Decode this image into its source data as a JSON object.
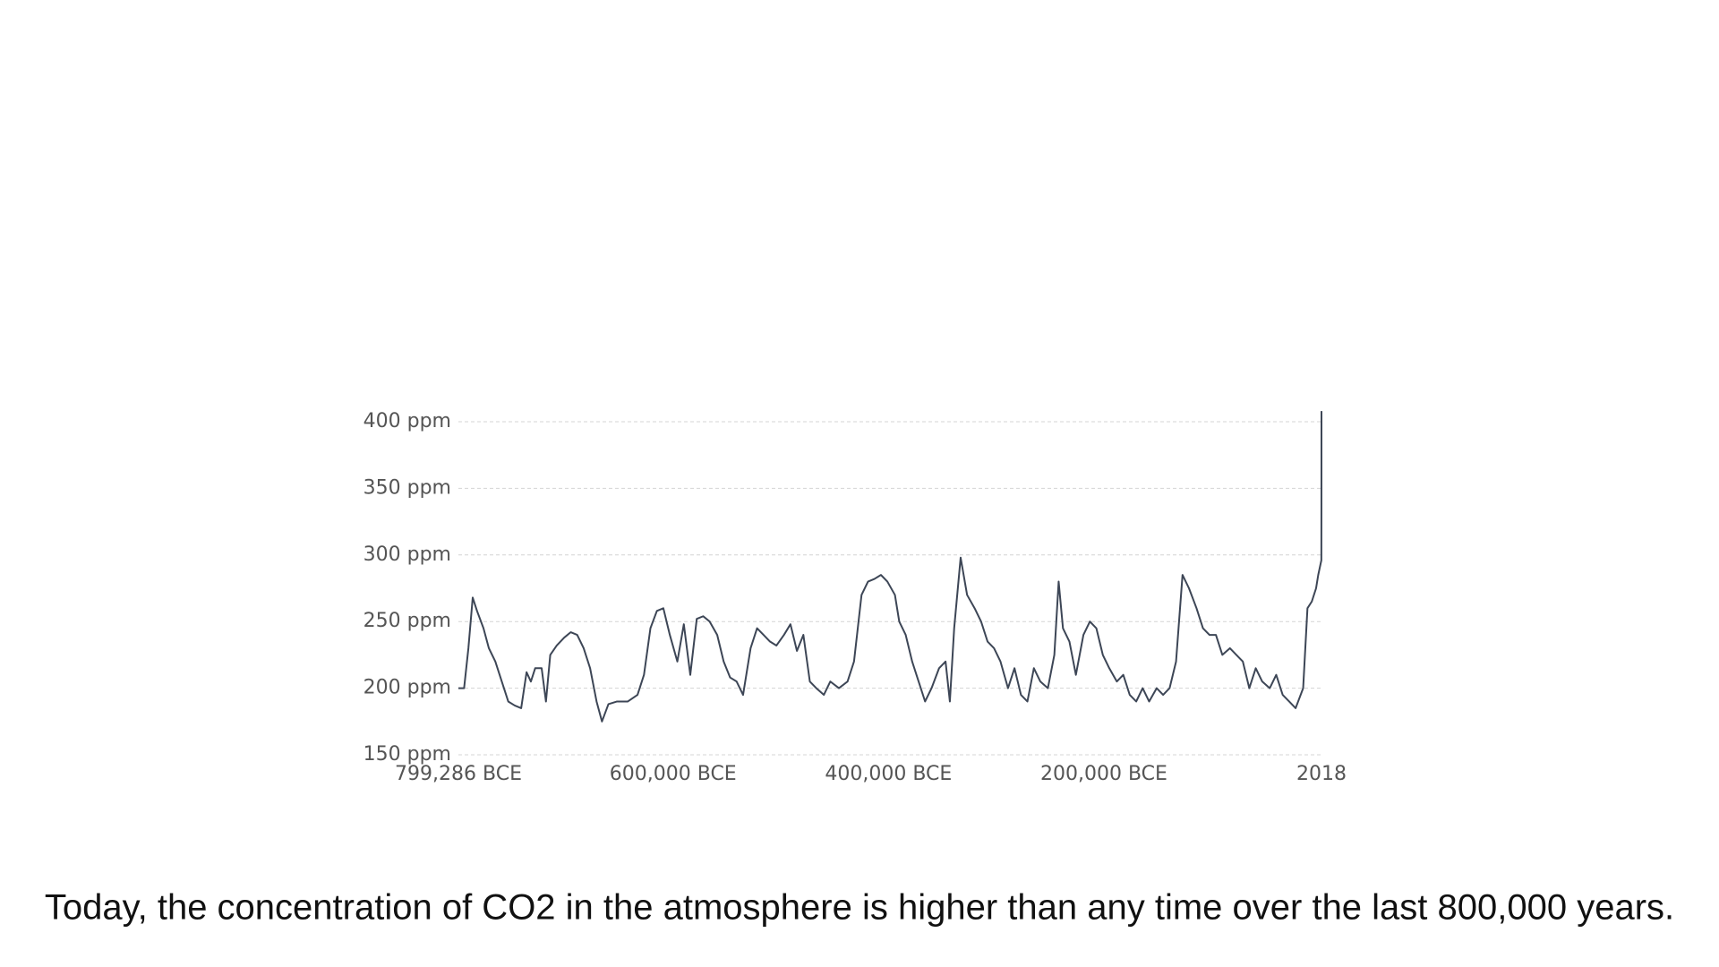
{
  "chart_data": {
    "type": "line",
    "color": "#3d4656",
    "grid": true,
    "x": [
      -799286,
      -794000,
      -790000,
      -786000,
      -782000,
      -776000,
      -771000,
      -765000,
      -759000,
      -753000,
      -747000,
      -741000,
      -736000,
      -732000,
      -728000,
      -722000,
      -718000,
      -714000,
      -708000,
      -701000,
      -695000,
      -689000,
      -683000,
      -677000,
      -671000,
      -666000,
      -660000,
      -652000,
      -642000,
      -633000,
      -627000,
      -621000,
      -615000,
      -609000,
      -603000,
      -596000,
      -590000,
      -584000,
      -578000,
      -572000,
      -566000,
      -559000,
      -553000,
      -547000,
      -541000,
      -535000,
      -528000,
      -522000,
      -516000,
      -510000,
      -504000,
      -497000,
      -491000,
      -485000,
      -479000,
      -473000,
      -467000,
      -460000,
      -454000,
      -446000,
      -438000,
      -432000,
      -425000,
      -419000,
      -413000,
      -407000,
      -401000,
      -394000,
      -390000,
      -384000,
      -378000,
      -372000,
      -366000,
      -360000,
      -353000,
      -347000,
      -343000,
      -339000,
      -333000,
      -327000,
      -320000,
      -314000,
      -308000,
      -302000,
      -296000,
      -289000,
      -283000,
      -277000,
      -271000,
      -265000,
      -259000,
      -252000,
      -246000,
      -242000,
      -238000,
      -232000,
      -226000,
      -219000,
      -213000,
      -207000,
      -201000,
      -195000,
      -188000,
      -182000,
      -176000,
      -170000,
      -164000,
      -158000,
      -151000,
      -145000,
      -139000,
      -133000,
      -127000,
      -121000,
      -114000,
      -108000,
      -102000,
      -96000,
      -90000,
      -83000,
      -77000,
      -71000,
      -65000,
      -59000,
      -53000,
      -46000,
      -40000,
      -34000,
      -28000,
      -22000,
      -15000,
      -11000,
      -7000,
      -3000,
      -1000,
      1900,
      1980,
      2018
    ],
    "values": [
      200,
      200,
      230,
      268,
      258,
      245,
      230,
      220,
      205,
      190,
      187,
      185,
      212,
      205,
      215,
      215,
      190,
      225,
      232,
      238,
      242,
      240,
      230,
      215,
      190,
      175,
      188,
      190,
      190,
      195,
      210,
      245,
      258,
      260,
      240,
      220,
      248,
      210,
      252,
      254,
      250,
      240,
      220,
      208,
      205,
      195,
      230,
      245,
      240,
      235,
      232,
      240,
      248,
      228,
      240,
      205,
      200,
      195,
      205,
      200,
      205,
      220,
      270,
      280,
      282,
      285,
      280,
      270,
      250,
      240,
      220,
      205,
      190,
      200,
      215,
      220,
      190,
      245,
      298,
      270,
      260,
      250,
      235,
      230,
      220,
      200,
      215,
      195,
      190,
      215,
      205,
      200,
      225,
      280,
      245,
      235,
      210,
      240,
      250,
      245,
      225,
      215,
      205,
      210,
      195,
      190,
      200,
      190,
      200,
      195,
      200,
      220,
      285,
      275,
      260,
      245,
      240,
      240,
      225,
      230,
      225,
      220,
      200,
      215,
      205,
      200,
      210,
      195,
      190,
      185,
      200,
      260,
      265,
      275,
      285,
      296,
      339,
      408
    ],
    "xlim": [
      -799286,
      2018
    ],
    "xticks": [
      {
        "value": -799286,
        "label": "799,286 BCE"
      },
      {
        "value": -600000,
        "label": "600,000 BCE"
      },
      {
        "value": -400000,
        "label": "400,000 BCE"
      },
      {
        "value": -200000,
        "label": "200,000 BCE"
      },
      2018
    ],
    "ylim": [
      150,
      400
    ],
    "yticks": [
      {
        "value": 150,
        "label": "150 ppm"
      },
      {
        "value": 200,
        "label": "200 ppm"
      },
      {
        "value": 250,
        "label": "250 ppm"
      },
      {
        "value": 300,
        "label": "300 ppm"
      },
      {
        "value": 350,
        "label": "350 ppm"
      },
      {
        "value": 400,
        "label": "400 ppm"
      }
    ]
  },
  "caption": "Today, the concentration of CO2 in the atmosphere is higher than any time over the last 800,000 years."
}
